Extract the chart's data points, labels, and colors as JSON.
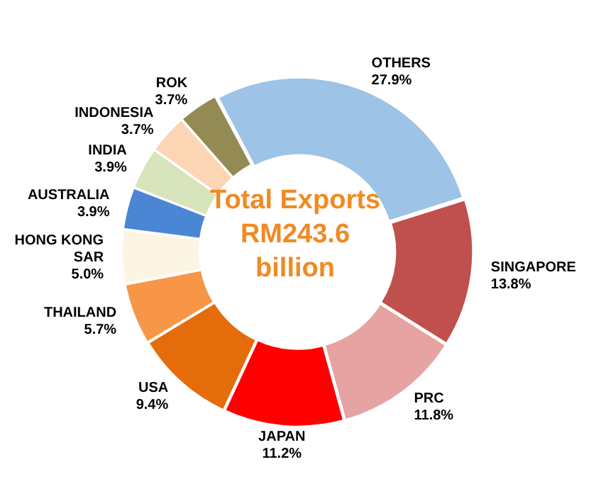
{
  "chart_data": {
    "type": "donut",
    "title": "Total Exports RM243.6 billion",
    "categories": [
      "OTHERS",
      "SINGAPORE",
      "PRC",
      "JAPAN",
      "USA",
      "THAILAND",
      "HONG KONG SAR",
      "AUSTRALIA",
      "INDIA",
      "INDONESIA",
      "ROK"
    ],
    "values": [
      27.9,
      13.8,
      11.8,
      11.2,
      9.4,
      5.7,
      5.0,
      3.9,
      3.9,
      3.7,
      3.7
    ],
    "value_labels": [
      "27.9%",
      "13.8%",
      "11.8%",
      "11.2%",
      "9.4%",
      "5.7%",
      "5.0%",
      "3.9%",
      "3.9%",
      "3.7%",
      "3.7%"
    ],
    "colors": [
      "#9dc3e6",
      "#c0504d",
      "#e6a3a1",
      "#ff0000",
      "#e46c0a",
      "#f79646",
      "#fdf5e4",
      "#4a86d4",
      "#d7e4bc",
      "#fcd5b5",
      "#948a54"
    ],
    "legend": false
  }
}
